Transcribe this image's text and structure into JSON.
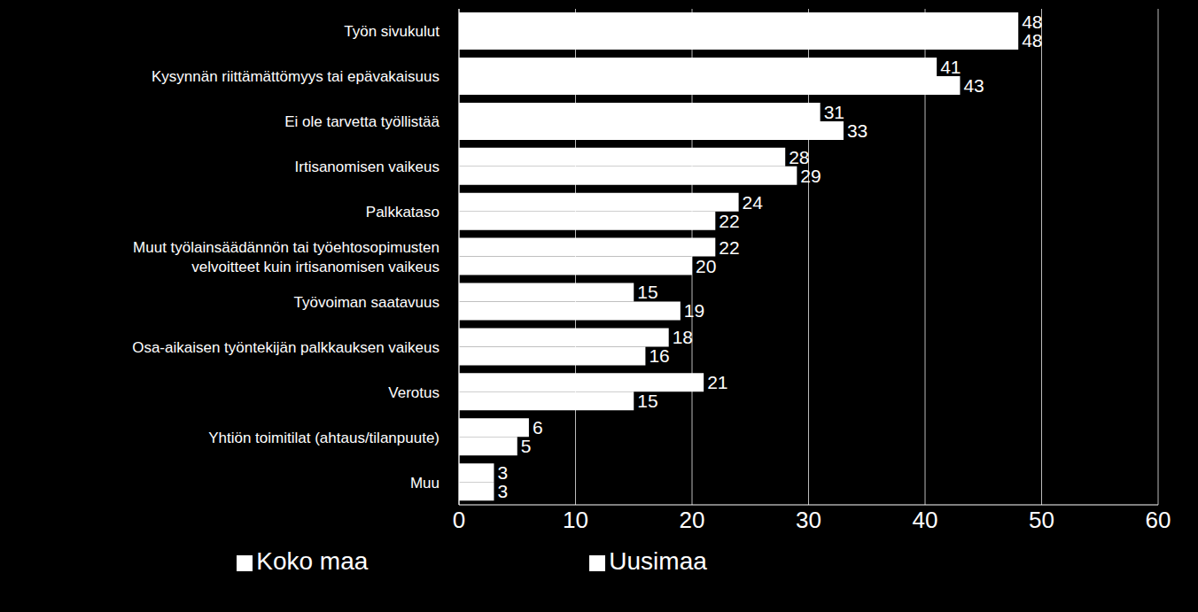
{
  "chart_data": {
    "type": "bar",
    "orientation": "horizontal",
    "categories": [
      "Työn sivukulut",
      "Kysynnän riittämättömyys tai epävakaisuus",
      "Ei ole tarvetta työllistää",
      "Irtisanomisen vaikeus",
      "Palkkataso",
      "Muut työlainsäädännön tai työehtosopimusten velvoitteet kuin irtisanomisen vaikeus",
      "Työvoiman saatavuus",
      "Osa-aikaisen työntekijän palkkauksen vaikeus",
      "Verotus",
      "Yhtiön toimitilat (ahtaus/tilanpuute)",
      "Muu"
    ],
    "series": [
      {
        "name": "Uusimaa",
        "color": "#ffffff",
        "values": [
          48,
          41,
          31,
          28,
          24,
          22,
          15,
          18,
          21,
          6,
          3
        ]
      },
      {
        "name": "Koko maa",
        "color": "#ffffff",
        "values": [
          48,
          43,
          33,
          29,
          22,
          20,
          19,
          16,
          15,
          5,
          3
        ]
      }
    ],
    "xlim": [
      0,
      60
    ],
    "xticks": [
      0,
      10,
      20,
      30,
      40,
      50,
      60
    ],
    "grid": true,
    "data_labels": true,
    "legend": "bottom"
  }
}
